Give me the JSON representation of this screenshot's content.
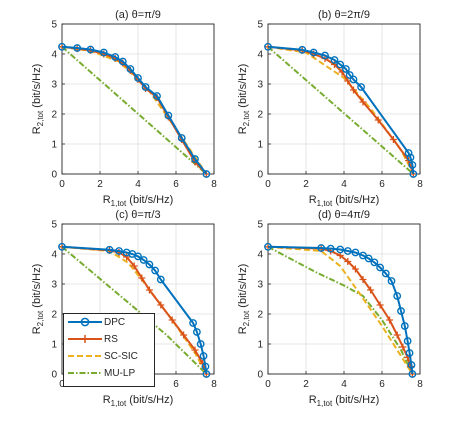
{
  "figure": {
    "colors": {
      "DPC": "#0072BD",
      "RS": "#D95319",
      "SC-SIC": "#EDB120",
      "MU-LP": "#77AC30",
      "axis": "#262626",
      "grid": "#DFDFDF"
    },
    "legend": {
      "items": [
        {
          "key": "DPC",
          "label": "DPC",
          "marker": "circle",
          "line": "solid"
        },
        {
          "key": "RS",
          "label": "RS",
          "marker": "plus",
          "line": "solid"
        },
        {
          "key": "SC-SIC",
          "label": "SC-SIC",
          "marker": "none",
          "line": "dashed"
        },
        {
          "key": "MU-LP",
          "label": "MU-LP",
          "marker": "none",
          "line": "dash-dot"
        }
      ]
    }
  },
  "chart_data": [
    {
      "type": "line",
      "title": "(a) θ=π/9",
      "xlabel": "R1,tot (bit/s/Hz)",
      "xlabel_main": "R",
      "xlabel_sub": "1,tot",
      "xlabel_rest": " (bit/s/Hz)",
      "ylabel": "R2,tot (bit/s/Hz)",
      "ylabel_main": "R",
      "ylabel_sub": "2,tot",
      "ylabel_rest": " (bit/s/Hz)",
      "xlim": [
        0,
        8
      ],
      "ylim": [
        0,
        5
      ],
      "xticks": [
        "0",
        "2",
        "4",
        "6",
        "8"
      ],
      "yticks": [
        "0",
        "1",
        "2",
        "3",
        "4",
        "5"
      ],
      "grid": true,
      "series": [
        {
          "name": "DPC",
          "x": [
            0,
            0.8,
            1.5,
            2.2,
            2.8,
            3.2,
            3.6,
            4.0,
            4.4,
            5.0,
            5.6,
            6.3,
            7.0,
            7.6
          ],
          "y": [
            4.24,
            4.2,
            4.15,
            4.05,
            3.9,
            3.75,
            3.5,
            3.2,
            2.9,
            2.6,
            1.95,
            1.2,
            0.5,
            0.0
          ]
        },
        {
          "name": "RS",
          "x": [
            0,
            0.8,
            1.5,
            2.2,
            2.8,
            3.2,
            3.6,
            4.0,
            4.4,
            5.0,
            5.6,
            6.3,
            7.0,
            7.6
          ],
          "y": [
            4.24,
            4.18,
            4.12,
            4.0,
            3.85,
            3.7,
            3.45,
            3.15,
            2.85,
            2.55,
            1.9,
            1.15,
            0.4,
            0.0
          ]
        },
        {
          "name": "SC-SIC",
          "x": [
            0,
            1.5,
            3.0,
            4.5,
            6.0,
            7.6
          ],
          "y": [
            4.24,
            4.1,
            3.75,
            2.85,
            1.5,
            0.0
          ]
        },
        {
          "name": "MU-LP",
          "x": [
            0,
            7.6
          ],
          "y": [
            4.24,
            0.0
          ]
        }
      ]
    },
    {
      "type": "line",
      "title": "(b) θ=2π/9",
      "xlabel": "R1,tot (bit/s/Hz)",
      "xlabel_main": "R",
      "xlabel_sub": "1,tot",
      "xlabel_rest": " (bit/s/Hz)",
      "ylabel": "R2,tot (bit/s/Hz)",
      "ylabel_main": "R",
      "ylabel_sub": "2,tot",
      "ylabel_rest": " (bit/s/Hz)",
      "xlim": [
        0,
        8
      ],
      "ylim": [
        0,
        5
      ],
      "xticks": [
        "0",
        "2",
        "4",
        "6",
        "8"
      ],
      "yticks": [
        "0",
        "1",
        "2",
        "3",
        "4",
        "5"
      ],
      "grid": true,
      "series": [
        {
          "name": "DPC",
          "x": [
            0,
            1.8,
            2.4,
            3.0,
            3.5,
            3.8,
            4.1,
            4.3,
            4.5,
            4.9,
            7.4,
            7.5,
            7.6,
            7.65
          ],
          "y": [
            4.24,
            4.14,
            4.05,
            3.95,
            3.8,
            3.65,
            3.5,
            3.3,
            3.15,
            2.9,
            0.7,
            0.55,
            0.3,
            0.0
          ]
        },
        {
          "name": "RS",
          "x": [
            0,
            1.8,
            2.4,
            3.0,
            3.5,
            3.9,
            4.2,
            4.5,
            5.0,
            5.8,
            6.6,
            7.4,
            7.65
          ],
          "y": [
            4.24,
            4.12,
            4.0,
            3.85,
            3.65,
            3.4,
            3.1,
            2.8,
            2.4,
            1.8,
            1.15,
            0.45,
            0.0
          ]
        },
        {
          "name": "SC-SIC",
          "x": [
            0,
            2.0,
            4.0,
            5.5,
            7.0,
            7.65
          ],
          "y": [
            4.24,
            4.05,
            3.2,
            2.1,
            0.8,
            0.0
          ]
        },
        {
          "name": "MU-LP",
          "x": [
            0,
            7.65
          ],
          "y": [
            4.24,
            0.0
          ]
        }
      ]
    },
    {
      "type": "line",
      "title": "(c) θ=π/3",
      "xlabel": "R1,tot (bit/s/Hz)",
      "xlabel_main": "R",
      "xlabel_sub": "1,tot",
      "xlabel_rest": " (bit/s/Hz)",
      "ylabel": "R2,tot (bit/s/Hz)",
      "ylabel_main": "R",
      "ylabel_sub": "2,tot",
      "ylabel_rest": " (bit/s/Hz)",
      "xlim": [
        0,
        8
      ],
      "ylim": [
        0,
        5
      ],
      "xticks": [
        "0",
        "2",
        "4",
        "6",
        "8"
      ],
      "yticks": [
        "0",
        "1",
        "2",
        "3",
        "4",
        "5"
      ],
      "grid": true,
      "series": [
        {
          "name": "DPC",
          "x": [
            0,
            2.5,
            3.0,
            3.4,
            3.7,
            4.0,
            4.3,
            4.6,
            4.9,
            5.2,
            6.9,
            7.1,
            7.3,
            7.45,
            7.55,
            7.6
          ],
          "y": [
            4.24,
            4.14,
            4.1,
            4.05,
            4.0,
            3.92,
            3.8,
            3.65,
            3.45,
            3.15,
            1.7,
            1.4,
            1.0,
            0.6,
            0.25,
            0.0
          ]
        },
        {
          "name": "RS",
          "x": [
            0,
            2.5,
            3.0,
            3.4,
            3.8,
            4.2,
            4.6,
            5.2,
            5.8,
            6.4,
            7.0,
            7.4,
            7.6
          ],
          "y": [
            4.24,
            4.12,
            4.05,
            3.9,
            3.6,
            3.2,
            2.8,
            2.3,
            1.8,
            1.3,
            0.8,
            0.35,
            0.0
          ]
        },
        {
          "name": "SC-SIC",
          "x": [
            0,
            2.5,
            3.5,
            4.5,
            5.8,
            7.0,
            7.6
          ],
          "y": [
            4.24,
            4.1,
            3.7,
            2.9,
            1.8,
            0.7,
            0.0
          ]
        },
        {
          "name": "MU-LP",
          "x": [
            0,
            4.2,
            5.5,
            7.6
          ],
          "y": [
            4.24,
            2.0,
            1.3,
            0.0
          ]
        }
      ]
    },
    {
      "type": "line",
      "title": "(d) θ=4π/9",
      "xlabel": "R1,tot (bit/s/Hz)",
      "xlabel_main": "R",
      "xlabel_sub": "1,tot",
      "xlabel_rest": " (bit/s/Hz)",
      "ylabel": "R2,tot (bit/s/Hz)",
      "ylabel_main": "R",
      "ylabel_sub": "2,tot",
      "ylabel_rest": " (bit/s/Hz)",
      "xlim": [
        0,
        8
      ],
      "ylim": [
        0,
        5
      ],
      "xticks": [
        "0",
        "2",
        "4",
        "6",
        "8"
      ],
      "yticks": [
        "0",
        "1",
        "2",
        "3",
        "4",
        "5"
      ],
      "grid": true,
      "series": [
        {
          "name": "DPC",
          "x": [
            0,
            2.8,
            3.3,
            3.8,
            4.2,
            4.6,
            5.0,
            5.3,
            5.6,
            5.9,
            6.2,
            6.5,
            6.8,
            7.0,
            7.2,
            7.35,
            7.45,
            7.55,
            7.6
          ],
          "y": [
            4.24,
            4.2,
            4.18,
            4.15,
            4.1,
            4.05,
            3.95,
            3.85,
            3.72,
            3.55,
            3.35,
            3.1,
            2.6,
            2.1,
            1.6,
            1.1,
            0.7,
            0.3,
            0.0
          ]
        },
        {
          "name": "RS",
          "x": [
            0,
            2.8,
            3.3,
            3.8,
            4.2,
            4.6,
            5.0,
            5.4,
            5.9,
            6.4,
            6.8,
            7.1,
            7.35,
            7.5,
            7.6
          ],
          "y": [
            4.24,
            4.18,
            4.1,
            3.95,
            3.75,
            3.5,
            3.15,
            2.8,
            2.3,
            1.8,
            1.3,
            0.9,
            0.55,
            0.25,
            0.0
          ]
        },
        {
          "name": "SC-SIC",
          "x": [
            0,
            2.8,
            3.8,
            4.8,
            6.0,
            7.0,
            7.6
          ],
          "y": [
            4.24,
            4.1,
            3.6,
            2.7,
            1.6,
            0.6,
            0.0
          ]
        },
        {
          "name": "MU-LP",
          "x": [
            0,
            2.5,
            4.0,
            5.0,
            6.0,
            7.0,
            7.6
          ],
          "y": [
            4.24,
            3.4,
            2.95,
            2.6,
            1.8,
            0.8,
            0.0
          ]
        }
      ]
    }
  ]
}
